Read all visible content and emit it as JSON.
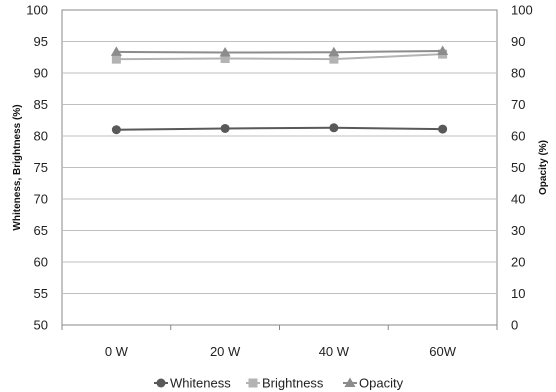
{
  "chart_data": {
    "type": "line",
    "categories": [
      "0 W",
      "20 W",
      "40 W",
      "60W"
    ],
    "ylabel_left": "Whiteness, Brightness (%)",
    "ylabel_right": "Opacity (%)",
    "ylim_left": [
      50,
      100
    ],
    "ylim_right": [
      0,
      100
    ],
    "yticks_left": [
      50,
      55,
      60,
      65,
      70,
      75,
      80,
      85,
      90,
      95,
      100
    ],
    "yticks_right": [
      0,
      10,
      20,
      30,
      40,
      50,
      60,
      70,
      80,
      90,
      100
    ],
    "grid": true,
    "legend_position": "bottom",
    "series": [
      {
        "name": "Whiteness",
        "axis": "left",
        "values": [
          81.0,
          81.2,
          81.3,
          81.1
        ],
        "color": "#595959",
        "marker": "circle"
      },
      {
        "name": "Brightness",
        "axis": "left",
        "values": [
          92.2,
          92.3,
          92.2,
          93.0
        ],
        "color": "#b3b3b3",
        "marker": "square"
      },
      {
        "name": "Opacity",
        "axis": "right",
        "values": [
          86.7,
          86.5,
          86.6,
          87.0
        ],
        "color": "#8c8c8c",
        "marker": "triangle"
      }
    ]
  }
}
